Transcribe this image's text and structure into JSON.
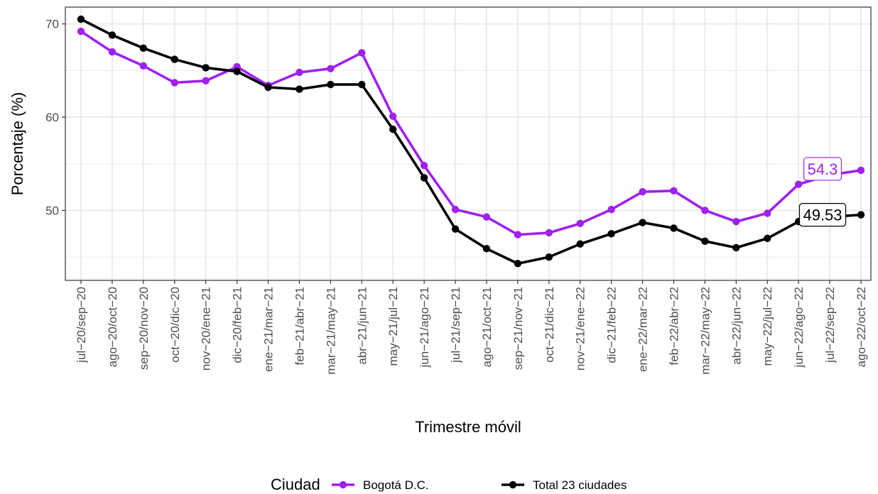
{
  "chart_data": {
    "type": "line",
    "xlabel": "Trimestre móvil",
    "ylabel": "Porcentaje (%)",
    "ylim": [
      42.5,
      71.8
    ],
    "yticks": [
      50,
      60,
      70
    ],
    "grid": true,
    "legend_position": "bottom",
    "legend_title": "Ciudad",
    "categories": [
      "jul−20/sep−20",
      "ago−20/oct−20",
      "sep−20/nov−20",
      "oct−20/dic−20",
      "nov−20/ene−21",
      "dic−20/feb−21",
      "ene−21/mar−21",
      "feb−21/abr−21",
      "mar−21/may−21",
      "abr−21/jun−21",
      "may−21/jul−21",
      "jun−21/ago−21",
      "jul−21/sep−21",
      "ago−21/oct−21",
      "sep−21/nov−21",
      "oct−21/dic−21",
      "nov−21/ene−22",
      "dic−21/feb−22",
      "ene−22/mar−22",
      "feb−22/abr−22",
      "mar−22/may−22",
      "abr−22/jun−22",
      "may−22/jul−22",
      "jun−22/ago−22",
      "jul−22/sep−22",
      "ago−22/oct−22"
    ],
    "series": [
      {
        "name": "Bogotá D.C.",
        "color": "#a020f0",
        "values": [
          69.2,
          67.0,
          65.5,
          63.7,
          63.9,
          65.4,
          63.4,
          64.8,
          65.2,
          66.9,
          60.1,
          54.8,
          50.1,
          49.3,
          47.4,
          47.6,
          48.6,
          50.1,
          52.0,
          52.1,
          50.0,
          48.8,
          49.7,
          52.8,
          53.8,
          54.3
        ],
        "end_label": "54.3"
      },
      {
        "name": "Total 23 ciudades",
        "color": "#000000",
        "values": [
          70.5,
          68.8,
          67.4,
          66.2,
          65.3,
          64.9,
          63.2,
          63.0,
          63.5,
          63.5,
          58.7,
          53.5,
          48.0,
          45.9,
          44.3,
          45.0,
          46.4,
          47.5,
          48.7,
          48.1,
          46.7,
          46.0,
          47.0,
          48.8,
          49.3,
          49.53
        ],
        "end_label": "49.53"
      }
    ]
  }
}
